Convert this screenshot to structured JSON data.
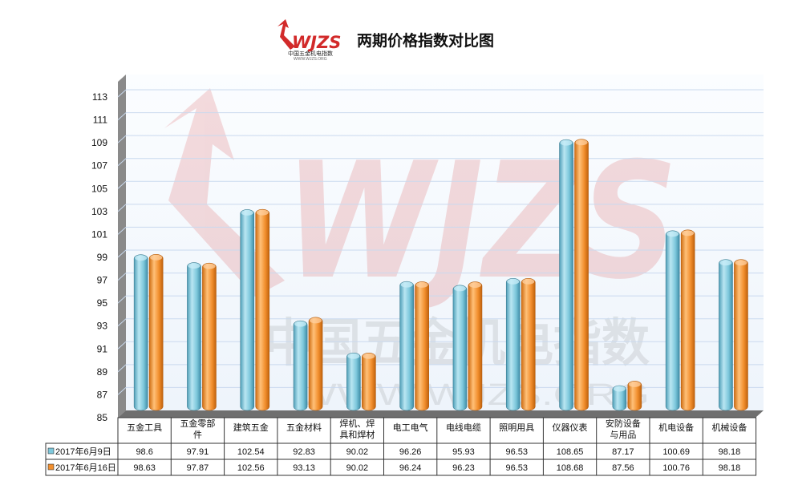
{
  "logo": {
    "mark": "WJZS",
    "subtitle": "中国五金机电指数",
    "url": "WWW.WJZS.ORG"
  },
  "watermark": {
    "mark": "WJZS",
    "line1": "中国五金机电指数",
    "line2": "WWW.WJZS.ORG"
  },
  "colors": {
    "series1": "#7ec8dc",
    "series2": "#f28f2e",
    "grid": "#c9d9ee",
    "wall": "#eef4fb",
    "axis_side": "#8a8a8a",
    "floor": "#6f6f6f"
  },
  "chart_data": {
    "type": "bar",
    "title": "两期价格指数对比图",
    "categories": [
      "五金工具",
      "五金零部件",
      "建筑五金",
      "五金材料",
      "焊机、焊具和焊材",
      "电工电气",
      "电线电缆",
      "照明用具",
      "仪器仪表",
      "安防设备与用品",
      "机电设备",
      "机械设备"
    ],
    "category_lines": [
      [
        "五金工具"
      ],
      [
        "五金零部",
        "件"
      ],
      [
        "建筑五金"
      ],
      [
        "五金材料"
      ],
      [
        "焊机、焊",
        "具和焊材"
      ],
      [
        "电工电气"
      ],
      [
        "电线电缆"
      ],
      [
        "照明用具"
      ],
      [
        "仪器仪表"
      ],
      [
        "安防设备",
        "与用品"
      ],
      [
        "机电设备"
      ],
      [
        "机械设备"
      ]
    ],
    "series": [
      {
        "name": "2017年6月9日",
        "values": [
          98.6,
          97.91,
          102.54,
          92.83,
          90.02,
          96.26,
          95.93,
          96.53,
          108.65,
          87.17,
          100.69,
          98.18
        ]
      },
      {
        "name": "2017年6月16日",
        "values": [
          98.63,
          97.87,
          102.56,
          93.13,
          90.02,
          96.24,
          96.23,
          96.53,
          108.68,
          87.56,
          100.76,
          98.18
        ]
      }
    ],
    "table_text": [
      [
        "98.6",
        "97.91",
        "102.54",
        "92.83",
        "90.02",
        "96.26",
        "95.93",
        "96.53",
        "108.65",
        "87.17",
        "100.69",
        "98.18"
      ],
      [
        "98.63",
        "97.87",
        "102.56",
        "93.13",
        "90.02",
        "96.24",
        "96.23",
        "96.53",
        "108.68",
        "87.56",
        "100.76",
        "98.18"
      ]
    ],
    "y_ticks": [
      "85",
      "87",
      "89",
      "91",
      "93",
      "95",
      "97",
      "99",
      "101",
      "103",
      "105",
      "107",
      "109",
      "111",
      "113"
    ],
    "ylim": [
      85,
      113
    ],
    "y_step": 2,
    "grid": true,
    "legend": "data-table-left"
  }
}
